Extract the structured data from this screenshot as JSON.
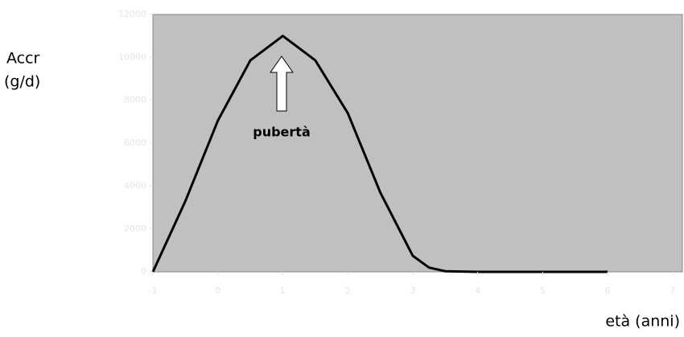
{
  "chart_data": {
    "type": "line",
    "y_label": [
      "Accr",
      "(g/d)"
    ],
    "x_label": "età (anni)",
    "annotation": "pubertà",
    "x": [
      -1,
      -0.5,
      0,
      0.5,
      1,
      1.5,
      2,
      2.5,
      3,
      3.25,
      3.5,
      4,
      4.5,
      5,
      5.5,
      6
    ],
    "series": [
      {
        "name": "Accr",
        "color": "#000000",
        "values": [
          0,
          3300,
          7050,
          9860,
          11000,
          9860,
          7400,
          3700,
          750,
          200,
          30,
          0,
          0,
          0,
          0,
          0
        ]
      }
    ],
    "xlim": [
      -1,
      7.15
    ],
    "xticks": [
      -1,
      0,
      1,
      2,
      3,
      4,
      5,
      6,
      7
    ],
    "ylim": [
      0,
      12000
    ],
    "yticks": [
      0,
      2000,
      4000,
      6000,
      8000,
      10000,
      12000
    ]
  }
}
